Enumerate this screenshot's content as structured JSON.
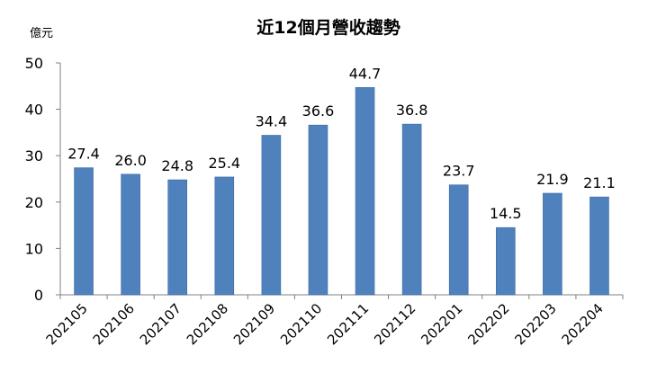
{
  "chart_data": {
    "type": "bar",
    "title": "近12個月營收趨勢",
    "y_unit": "億元",
    "xlabel": "",
    "ylabel": "",
    "ylim": [
      0,
      50
    ],
    "yticks": [
      0,
      10,
      20,
      30,
      40,
      50
    ],
    "grid": false,
    "categories": [
      "202105",
      "202106",
      "202107",
      "202108",
      "202109",
      "202110",
      "202111",
      "202112",
      "202201",
      "202202",
      "202203",
      "202204"
    ],
    "values": [
      27.4,
      26.0,
      24.8,
      25.4,
      34.4,
      36.6,
      44.7,
      36.8,
      23.7,
      14.5,
      21.9,
      21.1
    ],
    "value_labels": [
      "27.4",
      "26.0",
      "24.8",
      "25.4",
      "34.4",
      "36.6",
      "44.7",
      "36.8",
      "23.7",
      "14.5",
      "21.9",
      "21.1"
    ],
    "bar_color": "#4F81BD",
    "bar_edge_color": "#3C6BA5"
  }
}
